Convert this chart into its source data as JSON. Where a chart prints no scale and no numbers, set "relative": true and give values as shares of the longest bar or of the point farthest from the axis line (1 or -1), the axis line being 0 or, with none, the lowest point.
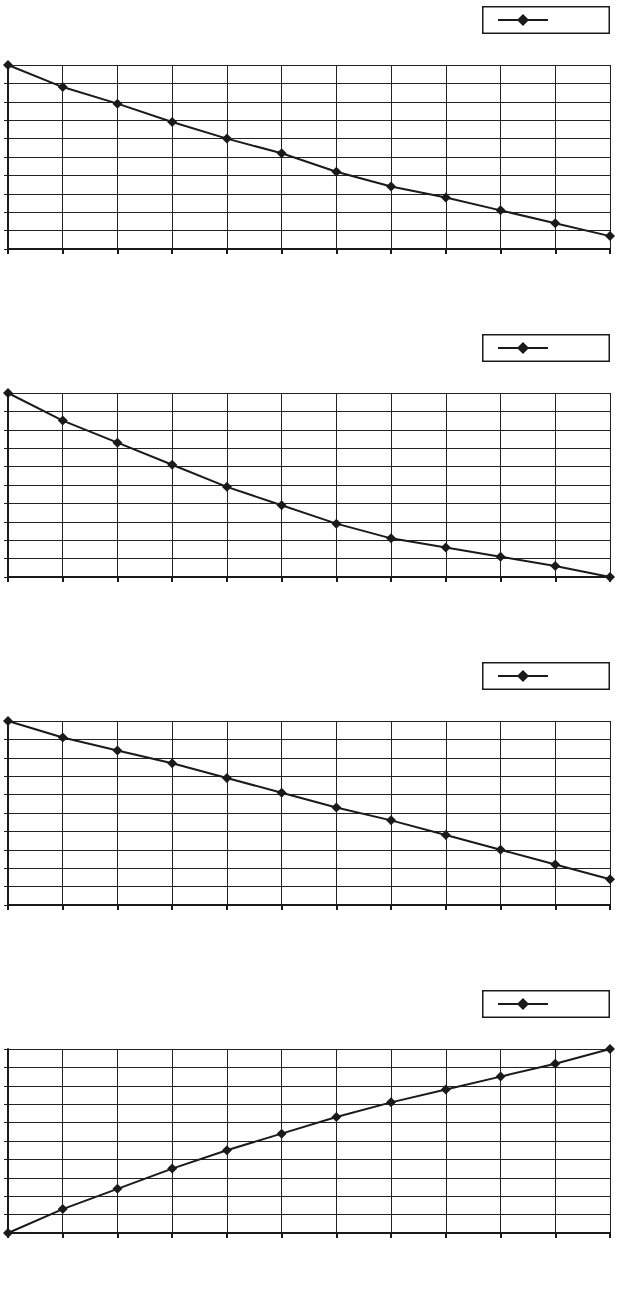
{
  "chart_data": [
    {
      "type": "line",
      "relative": true,
      "categories": [
        null,
        null,
        null,
        null,
        null,
        null,
        null,
        null,
        null,
        null,
        null,
        null
      ],
      "series": [
        {
          "color": "#1a1a1a",
          "values": [
            1,
            0.88,
            0.79,
            0.69,
            0.6,
            0.52,
            0.42,
            0.34,
            0.28,
            0.21,
            0.14,
            0.07
          ]
        }
      ],
      "marker": "diamond",
      "line_style": "solid",
      "grid": true
    },
    {
      "type": "line",
      "relative": true,
      "categories": [
        null,
        null,
        null,
        null,
        null,
        null,
        null,
        null,
        null,
        null,
        null,
        null
      ],
      "series": [
        {
          "color": "#1a1a1a",
          "values": [
            1,
            0.85,
            0.73,
            0.61,
            0.49,
            0.39,
            0.29,
            0.21,
            0.16,
            0.11,
            0.06,
            0
          ]
        }
      ],
      "marker": "diamond",
      "line_style": "solid",
      "grid": true
    },
    {
      "type": "line",
      "relative": true,
      "categories": [
        null,
        null,
        null,
        null,
        null,
        null,
        null,
        null,
        null,
        null,
        null,
        null
      ],
      "series": [
        {
          "color": "#1a1a1a",
          "values": [
            1,
            0.91,
            0.84,
            0.77,
            0.69,
            0.61,
            0.53,
            0.46,
            0.38,
            0.3,
            0.22,
            0.14
          ]
        }
      ],
      "marker": "diamond",
      "line_style": "solid",
      "grid": true
    },
    {
      "type": "line",
      "relative": true,
      "categories": [
        null,
        null,
        null,
        null,
        null,
        null,
        null,
        null,
        null,
        null,
        null,
        null
      ],
      "series": [
        {
          "color": "#1a1a1a",
          "values": [
            0,
            0.13,
            0.24,
            0.35,
            0.45,
            0.54,
            0.63,
            0.71,
            0.78,
            0.85,
            0.92,
            1
          ]
        }
      ],
      "marker": "diamond",
      "line_style": "solid",
      "grid": true
    }
  ]
}
